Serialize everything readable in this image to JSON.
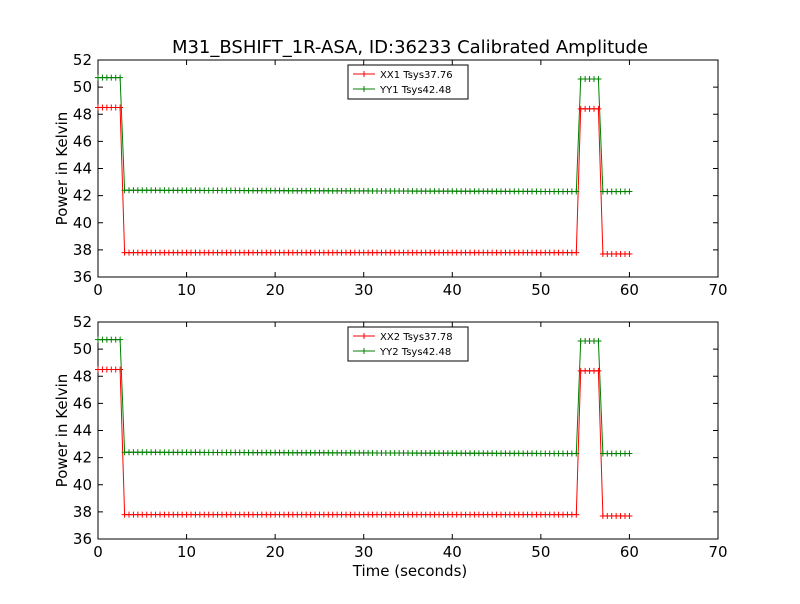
{
  "chart_data": {
    "type": "line",
    "title": "M31_BSHIFT_1R-ASA, ID:36233 Calibrated Amplitude",
    "xlabel": "Time (seconds)",
    "ylabel": "Power in Kelvin",
    "xlim": [
      0,
      70
    ],
    "ylim": [
      36,
      52
    ],
    "x_ticks": [
      "0",
      "10",
      "20",
      "30",
      "40",
      "50",
      "60",
      "70"
    ],
    "y_ticks": [
      "36",
      "38",
      "40",
      "42",
      "44",
      "46",
      "48",
      "50",
      "52"
    ],
    "grid": false,
    "legend_position": "top-center",
    "panels": [
      {
        "series": [
          {
            "name": "XX1 Tsys37.76",
            "color": "#ff0000",
            "marker": "+",
            "x": [
              0,
              2.5,
              3.0,
              54.0,
              54.5,
              56.5,
              57.0,
              60.0
            ],
            "y": [
              48.5,
              48.5,
              37.8,
              37.8,
              48.4,
              48.4,
              37.7,
              37.7
            ]
          },
          {
            "name": "YY1 Tsys42.48",
            "color": "#007f00",
            "marker": "+",
            "x": [
              0,
              2.5,
              3.0,
              54.0,
              54.5,
              56.5,
              57.0,
              60.0
            ],
            "y": [
              50.7,
              50.7,
              42.4,
              42.3,
              50.6,
              50.6,
              42.3,
              42.3
            ]
          }
        ]
      },
      {
        "series": [
          {
            "name": "XX2 Tsys37.78",
            "color": "#ff0000",
            "marker": "+",
            "x": [
              0,
              2.5,
              3.0,
              54.0,
              54.5,
              56.5,
              57.0,
              60.0
            ],
            "y": [
              48.5,
              48.5,
              37.8,
              37.8,
              48.4,
              48.4,
              37.7,
              37.7
            ]
          },
          {
            "name": "YY2 Tsys42.48",
            "color": "#007f00",
            "marker": "+",
            "x": [
              0,
              2.5,
              3.0,
              54.0,
              54.5,
              56.5,
              57.0,
              60.0
            ],
            "y": [
              50.7,
              50.7,
              42.4,
              42.3,
              50.6,
              50.6,
              42.3,
              42.3
            ]
          }
        ]
      }
    ]
  }
}
